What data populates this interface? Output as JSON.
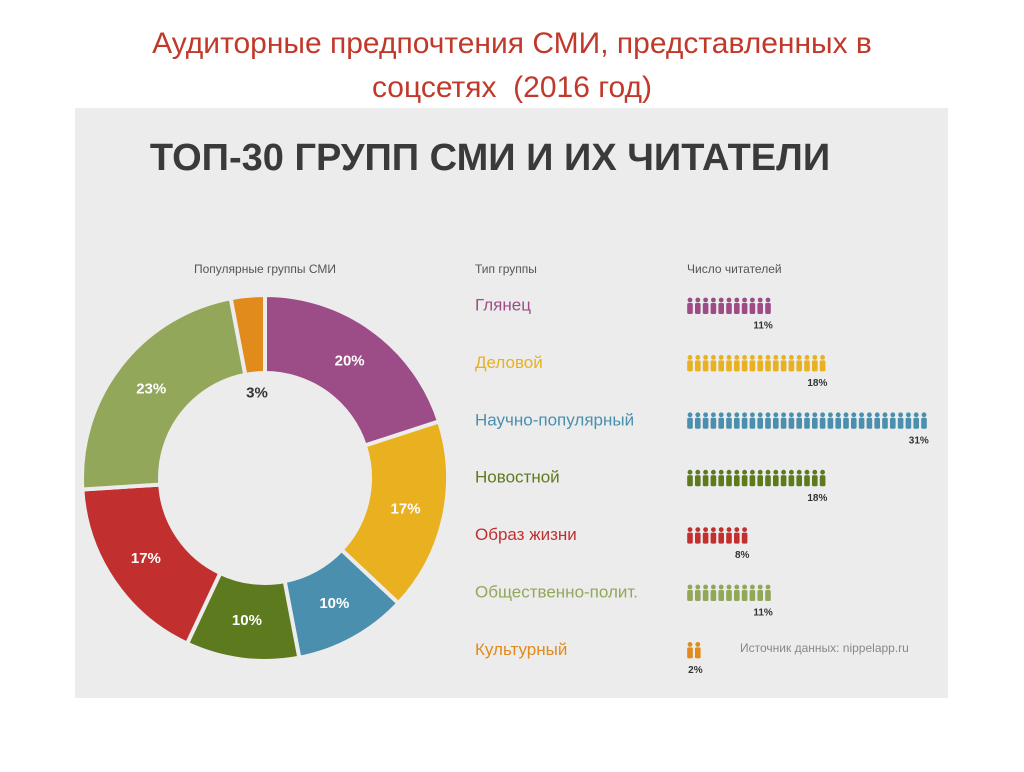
{
  "title": "Аудиторные предпочтения СМИ, представленных в соцсетях  (2016 год)",
  "infographic_title": "ТОП-30 ГРУПП СМИ И ИХ ЧИТАТЕЛИ",
  "source": "Источник данных: nippelapp.ru",
  "chart_data": [
    {
      "type": "pie",
      "title": "Популярные группы СМИ",
      "values": [
        20,
        17,
        10,
        10,
        17,
        23,
        3
      ],
      "value_labels": [
        "20%",
        "17%",
        "10%",
        "10%",
        "17%",
        "23%",
        "3%"
      ],
      "colors": [
        "#9c4d88",
        "#e9b11f",
        "#4b8fae",
        "#5e7a1f",
        "#c1302f",
        "#93a75a",
        "#e08b1c"
      ]
    },
    {
      "type": "pictogram",
      "label_header": "Тип группы",
      "value_header": "Число читателей",
      "categories": [
        "Глянец",
        "Деловой",
        "Научно-популярный",
        "Новостной",
        "Образ жизни",
        "Общественно-полит.",
        "Культурный"
      ],
      "values": [
        11,
        18,
        31,
        18,
        8,
        11,
        2
      ],
      "value_labels": [
        "11%",
        "18%",
        "31%",
        "18%",
        "8%",
        "11%",
        "2%"
      ],
      "colors": [
        "#9c4d88",
        "#e9b11f",
        "#4b8fae",
        "#5e7a1f",
        "#c1302f",
        "#93a75a",
        "#e08b1c"
      ]
    }
  ]
}
